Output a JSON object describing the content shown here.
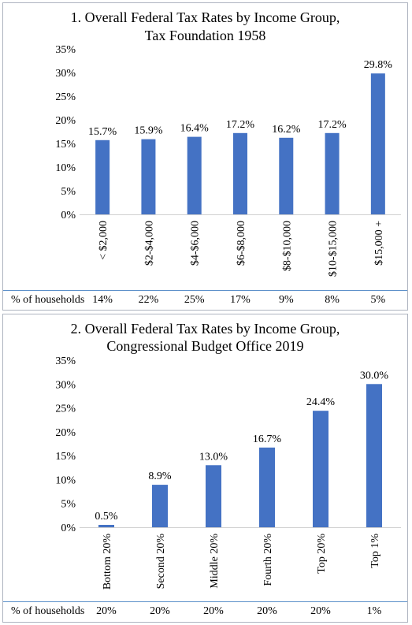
{
  "charts": [
    {
      "chart_data": {
        "type": "bar",
        "title": [
          "1. Overall Federal Tax Rates by Income Group,",
          "Tax Foundation 1958"
        ],
        "categories": [
          "< $2,000",
          "$2-$4,000",
          "$4-$6,000",
          "$6-$8,000",
          "$8-$10,000",
          "$10-$15,000",
          "$15,000 +"
        ],
        "values": [
          15.7,
          15.9,
          16.4,
          17.2,
          16.2,
          17.2,
          29.8
        ],
        "data_labels": [
          "15.7%",
          "15.9%",
          "16.4%",
          "17.2%",
          "16.2%",
          "17.2%",
          "29.8%"
        ],
        "yticks": [
          "0%",
          "5%",
          "10%",
          "15%",
          "20%",
          "25%",
          "30%",
          "35%"
        ],
        "ylim": [
          0,
          35
        ],
        "grid": false,
        "bar_color": "#4472c4"
      },
      "households": {
        "label": "% of households",
        "values": [
          "14%",
          "22%",
          "25%",
          "17%",
          "9%",
          "8%",
          "5%"
        ]
      }
    },
    {
      "chart_data": {
        "type": "bar",
        "title": [
          "2. Overall Federal Tax Rates by Income Group,",
          "Congressional Budget Office 2019"
        ],
        "categories": [
          "Bottom 20%",
          "Second 20%",
          "Middle 20%",
          "Fourth 20%",
          "Top 20%",
          "Top 1%"
        ],
        "values": [
          0.5,
          8.9,
          13.0,
          16.7,
          24.4,
          30.0
        ],
        "data_labels": [
          "0.5%",
          "8.9%",
          "13.0%",
          "16.7%",
          "24.4%",
          "30.0%"
        ],
        "yticks": [
          "0%",
          "5%",
          "10%",
          "15%",
          "20%",
          "25%",
          "30%",
          "35%"
        ],
        "ylim": [
          0,
          35
        ],
        "grid": false,
        "bar_color": "#4472c4"
      },
      "households": {
        "label": "% of households",
        "values": [
          "20%",
          "20%",
          "20%",
          "20%",
          "20%",
          "1%"
        ]
      }
    }
  ]
}
